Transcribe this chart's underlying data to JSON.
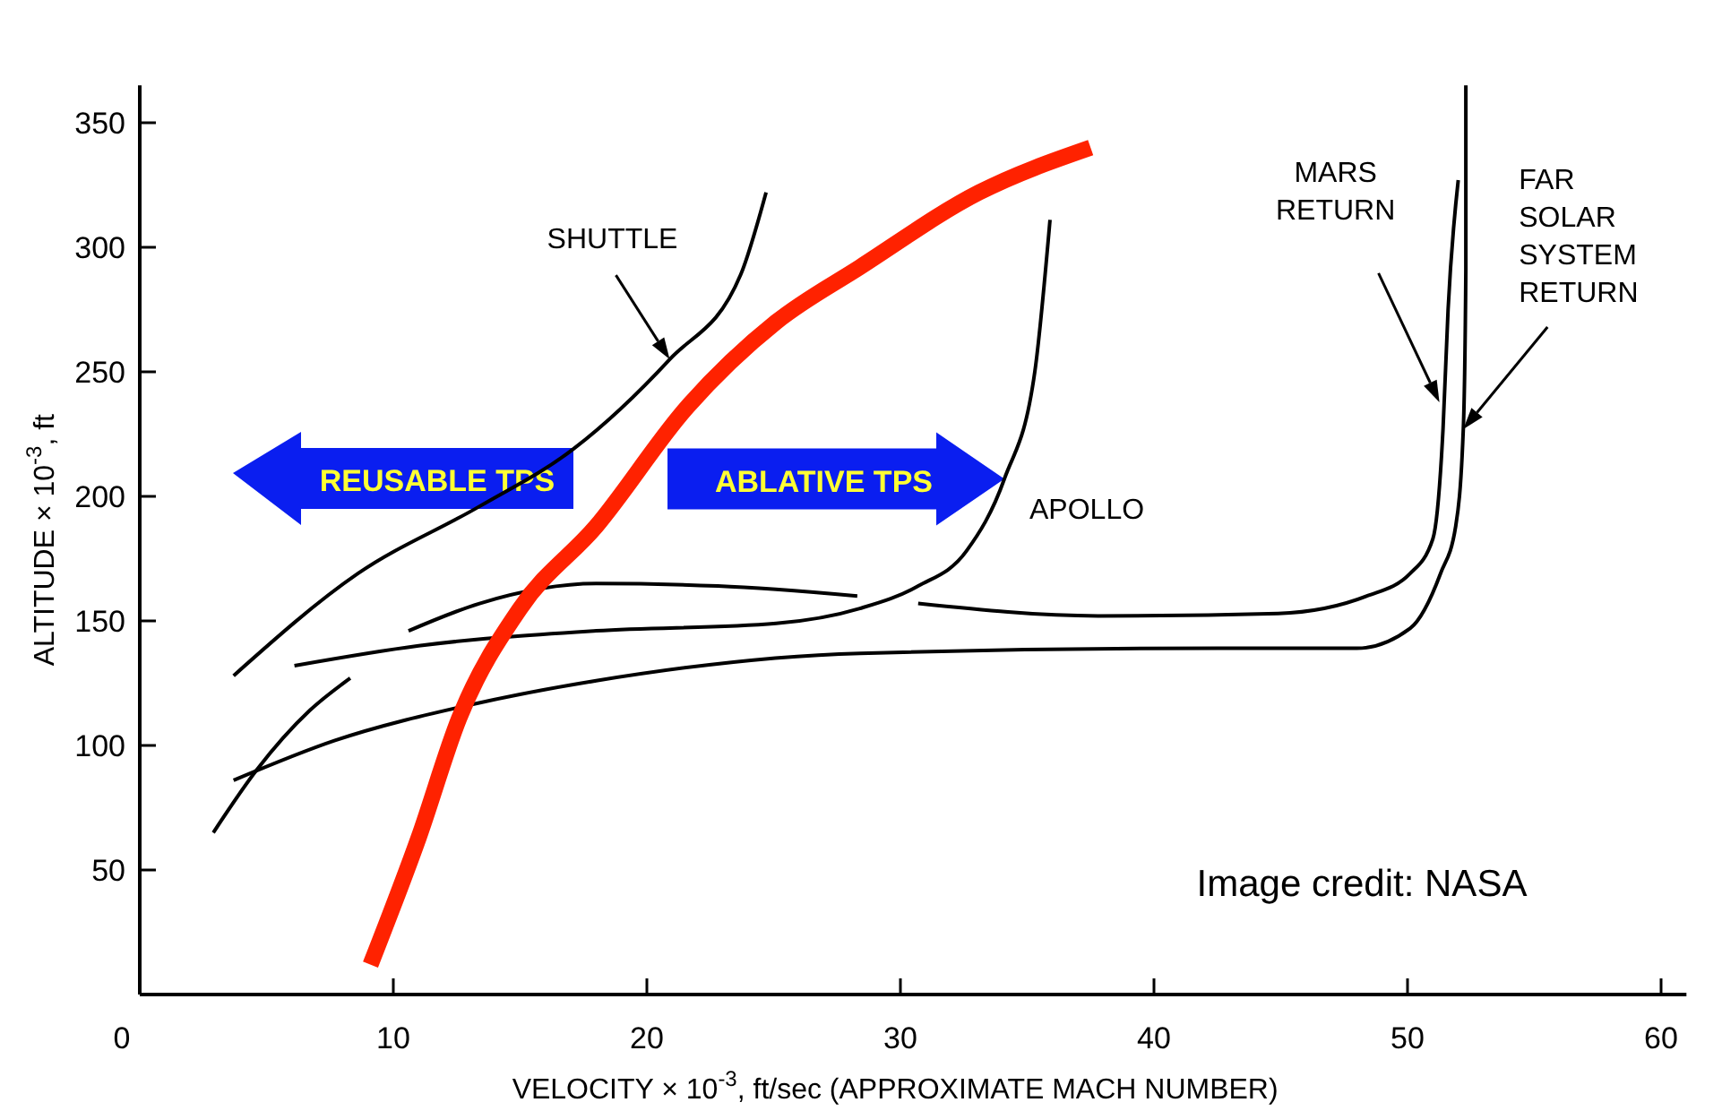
{
  "chart_data": {
    "type": "line",
    "xlabel": "VELOCITY × 10$^{-3}$, ft/sec (APPROXIMATE MACH NUMBER)",
    "ylabel": "ALTITUDE × 10$^{-3}$, ft",
    "xlim": [
      0,
      61
    ],
    "ylim": [
      0,
      365
    ],
    "xticks": [
      0,
      10,
      20,
      30,
      40,
      50,
      60
    ],
    "yticks": [
      50,
      100,
      150,
      200,
      250,
      300,
      350
    ],
    "grid": false,
    "legend": false,
    "marker": "none",
    "line_style": "solid",
    "series": [
      {
        "name": "SHUTTLE",
        "color": "#000000",
        "x": [
          3.7,
          8.6,
          13.4,
          17.1,
          20.9,
          23.7,
          24.7
        ],
        "values": [
          128,
          169,
          196,
          219,
          255,
          289,
          322
        ]
      },
      {
        "color": "#000000",
        "x": [
          2.9,
          4.6,
          6.7,
          8.3
        ],
        "values": [
          65,
          90,
          114,
          127
        ]
      },
      {
        "name": "FAR\nSOLAR\nSYSTEM\nRETURN",
        "color": "#000000",
        "x": [
          3.7,
          7.7,
          12.9,
          18.0,
          28.4,
          42.5,
          48.0,
          50.1,
          51.3,
          51.9,
          52.2,
          52.3,
          52.3
        ],
        "values": [
          86,
          102,
          116,
          126,
          137,
          139,
          139,
          147,
          169,
          188,
          227,
          291,
          365
        ]
      },
      {
        "name": "APOLLO",
        "color": "#000000",
        "x": [
          6.1,
          11.0,
          18.0,
          25.1,
          28.4,
          30.7,
          32.6,
          34.1,
          35.3,
          35.9
        ],
        "values": [
          132,
          140,
          146,
          149,
          155,
          164,
          178,
          207,
          250,
          311
        ]
      },
      {
        "color": "#000000",
        "x": [
          10.6,
          13.4,
          18.0,
          22.8,
          28.3
        ],
        "values": [
          146,
          157,
          165,
          164,
          160
        ]
      },
      {
        "name": "MARS\nRETURN",
        "color": "#000000",
        "x": [
          30.7,
          37.8,
          44.9,
          48.4,
          50.1,
          51.0,
          51.4,
          51.6,
          52.0
        ],
        "values": [
          157,
          152,
          153,
          160,
          169,
          183,
          227,
          275,
          327
        ]
      },
      {
        "color": "#ff2200",
        "x": [
          9.1,
          11.0,
          12.6,
          15.0,
          18.0,
          21.6,
          25.1,
          28.4,
          33.1,
          37.5
        ],
        "values": [
          12,
          63,
          111,
          155,
          188,
          236,
          270,
          292,
          322,
          340
        ]
      }
    ],
    "annotations": [
      "REUSABLE TPS",
      {
        "text": "ABLATIVE TPS",
        "x": 34.1,
        "y": 207
      },
      "Image credit: NASA"
    ]
  }
}
